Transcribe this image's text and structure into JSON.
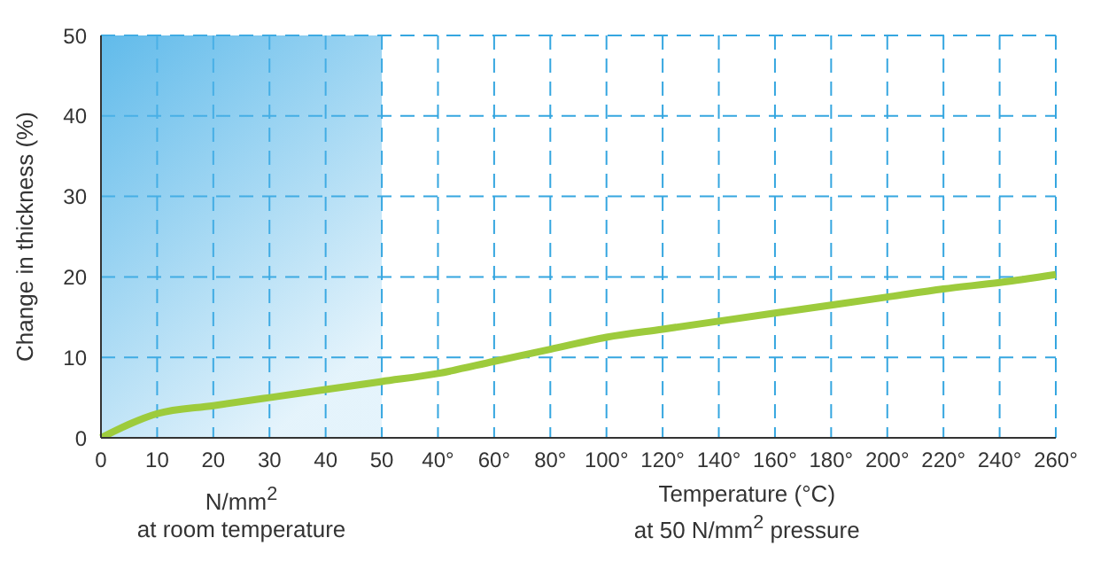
{
  "chart_data": {
    "type": "line",
    "ylabel": "Change in thickness (%)",
    "categories": [
      "0",
      "10",
      "20",
      "30",
      "40",
      "50",
      "40°",
      "60°",
      "80°",
      "100°",
      "120°",
      "140°",
      "160°",
      "180°",
      "200°",
      "220°",
      "240°",
      "260°"
    ],
    "series": [
      {
        "color": "#9dcb3c",
        "values": [
          0,
          3,
          4,
          5,
          6,
          7,
          8,
          9.5,
          11,
          12.5,
          13.5,
          14.5,
          15.5,
          16.5,
          17.5,
          18.5,
          19.3,
          20.3
        ]
      }
    ],
    "ylim": [
      0,
      50
    ],
    "yticks": [
      0,
      10,
      20,
      30,
      40,
      50
    ],
    "grid": true,
    "line_style": "solid",
    "marker": "none",
    "bands": [
      {
        "axis": "x",
        "from": "0",
        "to": "50",
        "color": "#4fb3e8"
      }
    ],
    "annotations": [
      "N/mm$^{2}$\nat room temperature",
      "Temperature (°C)\nat 50 N/mm$^{2}$ pressure"
    ]
  }
}
